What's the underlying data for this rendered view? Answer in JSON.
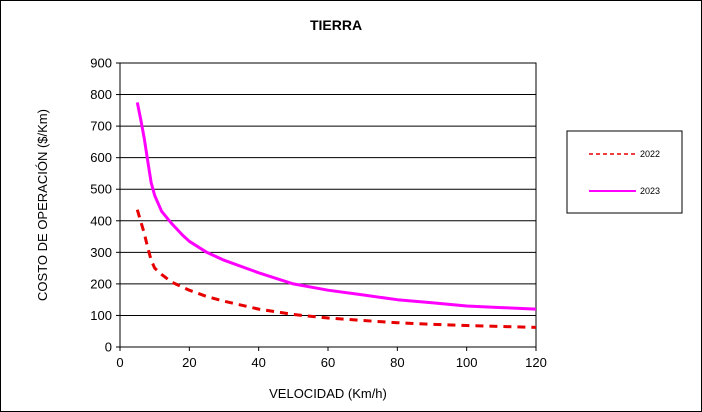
{
  "chart_data": {
    "type": "line",
    "title": "TIERRA",
    "xlabel": "VELOCIDAD (Km/h)",
    "ylabel": "COSTO DE OPERACIÓN ($/Km)",
    "xlim": [
      0,
      120
    ],
    "ylim": [
      0,
      900
    ],
    "xticks": [
      0,
      20,
      40,
      60,
      80,
      100,
      120
    ],
    "yticks": [
      0,
      100,
      200,
      300,
      400,
      500,
      600,
      700,
      800,
      900
    ],
    "grid": "horizontal",
    "legend_position": "right",
    "series": [
      {
        "name": "2022",
        "color": "#e60000",
        "style": "dashed",
        "points": [
          [
            5,
            435
          ],
          [
            7,
            360
          ],
          [
            8,
            315
          ],
          [
            9,
            275
          ],
          [
            10,
            250
          ],
          [
            12,
            230
          ],
          [
            15,
            205
          ],
          [
            20,
            180
          ],
          [
            25,
            160
          ],
          [
            30,
            145
          ],
          [
            40,
            120
          ],
          [
            50,
            103
          ],
          [
            60,
            92
          ],
          [
            70,
            84
          ],
          [
            80,
            77
          ],
          [
            90,
            72
          ],
          [
            100,
            68
          ],
          [
            110,
            65
          ],
          [
            120,
            62
          ]
        ]
      },
      {
        "name": "2023",
        "color": "#ff00ff",
        "style": "solid",
        "points": [
          [
            5,
            775
          ],
          [
            6,
            720
          ],
          [
            7,
            660
          ],
          [
            8,
            590
          ],
          [
            9,
            520
          ],
          [
            10,
            480
          ],
          [
            12,
            430
          ],
          [
            15,
            390
          ],
          [
            18,
            355
          ],
          [
            20,
            335
          ],
          [
            25,
            300
          ],
          [
            30,
            275
          ],
          [
            40,
            235
          ],
          [
            50,
            200
          ],
          [
            60,
            180
          ],
          [
            70,
            165
          ],
          [
            80,
            150
          ],
          [
            90,
            140
          ],
          [
            100,
            130
          ],
          [
            110,
            125
          ],
          [
            120,
            120
          ]
        ]
      }
    ]
  }
}
